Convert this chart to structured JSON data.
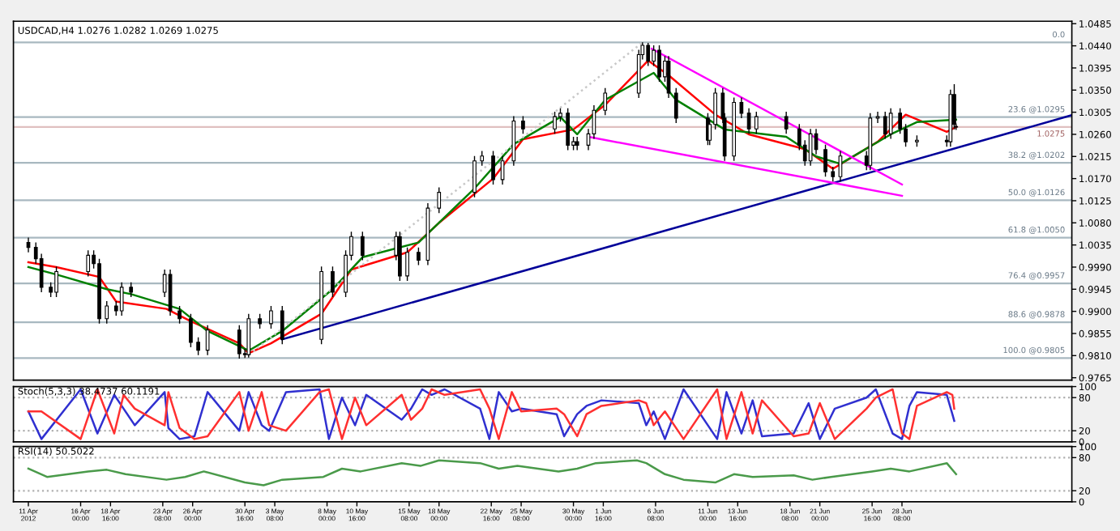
{
  "chart_data": [
    {
      "type": "candlestick",
      "title": "USDCAD,H4 1.0276 1.0282 1.0269 1.0275",
      "x": [
        "2012-04-11T08:00",
        "2012-04-12T00:00",
        "2012-04-12T12:00",
        "2012-04-13T08:00",
        "2012-04-13T20:00",
        "2012-04-16T16:00",
        "2012-04-17T04:00",
        "2012-04-17T16:00",
        "2012-04-18T08:00",
        "2012-04-19T04:00",
        "2012-04-19T16:00",
        "2012-04-20T12:00",
        "2012-04-23T12:00",
        "2012-04-24T00:00",
        "2012-04-24T20:00",
        "2012-04-25T20:00",
        "2012-04-26T12:00",
        "2012-04-27T08:00",
        "2012-04-30T04:00",
        "2012-04-30T16:00",
        "2012-05-01T00:00",
        "2012-05-02T00:00",
        "2012-05-03T00:00",
        "2012-05-04T00:00",
        "2012-05-07T12:00",
        "2012-05-08T12:00",
        "2012-05-09T16:00",
        "2012-05-10T04:00",
        "2012-05-11T04:00",
        "2012-05-14T04:00",
        "2012-05-14T12:00",
        "2012-05-15T04:00",
        "2012-05-16T04:00",
        "2012-05-17T00:00",
        "2012-05-18T00:00",
        "2012-05-21T04:00",
        "2012-05-21T20:00",
        "2012-05-22T20:00",
        "2012-05-23T16:00",
        "2012-05-24T16:00",
        "2012-05-25T12:00",
        "2012-05-28T08:00",
        "2012-05-28T20:00",
        "2012-05-29T12:00",
        "2012-05-30T00:00",
        "2012-05-30T08:00",
        "2012-05-31T08:00",
        "2012-05-31T20:00",
        "2012-06-01T20:00",
        "2012-06-04T20:00",
        "2012-06-05T04:00",
        "2012-06-05T16:00",
        "2012-06-06T04:00",
        "2012-06-06T16:00",
        "2012-06-07T04:00",
        "2012-06-07T12:00",
        "2012-06-08T04:00",
        "2012-06-11T00:00",
        "2012-06-11T04:00",
        "2012-06-11T16:00",
        "2012-06-12T08:00",
        "2012-06-12T12:00",
        "2012-06-13T08:00",
        "2012-06-14T00:00",
        "2012-06-14T16:00",
        "2012-06-15T08:00",
        "2012-06-18T00:00",
        "2012-06-19T04:00",
        "2012-06-19T16:00",
        "2012-06-20T04:00",
        "2012-06-20T16:00",
        "2012-06-21T12:00",
        "2012-06-22T04:00",
        "2012-06-22T20:00",
        "2012-06-25T04:00",
        "2012-06-25T12:00",
        "2012-06-26T04:00",
        "2012-06-26T20:00",
        "2012-06-27T08:00",
        "2012-06-28T04:00",
        "2012-06-28T16:00",
        "2012-06-29T16:00",
        "2012-07-02T08:00",
        "2012-07-02T16:00",
        "2012-07-03T00:00",
        "2012-07-03T04:00"
      ],
      "ohlc": [
        [
          1.004,
          1.005,
          1.002,
          1.003
        ],
        [
          1.003,
          1.004,
          0.9997,
          1.0007
        ],
        [
          1.0007,
          1.0017,
          0.9939,
          0.9949
        ],
        [
          0.9949,
          0.9959,
          0.9929,
          0.9939
        ],
        [
          0.9939,
          0.9991,
          0.9929,
          0.9981
        ],
        [
          0.9981,
          1.0024,
          0.9971,
          1.0014
        ],
        [
          1.0014,
          1.0024,
          0.9987,
          0.9997
        ],
        [
          0.9997,
          1.0007,
          0.9875,
          0.9885
        ],
        [
          0.9885,
          0.9921,
          0.9875,
          0.9911
        ],
        [
          0.9911,
          0.9921,
          0.9891,
          0.9901
        ],
        [
          0.9901,
          0.9959,
          0.9891,
          0.9949
        ],
        [
          0.9949,
          0.9959,
          0.9929,
          0.9939
        ],
        [
          0.9939,
          0.9985,
          0.9929,
          0.9975
        ],
        [
          0.9975,
          0.9985,
          0.9891,
          0.9901
        ],
        [
          0.9901,
          0.9911,
          0.9875,
          0.9885
        ],
        [
          0.9885,
          0.9895,
          0.9827,
          0.9837
        ],
        [
          0.9837,
          0.9847,
          0.9811,
          0.9821
        ],
        [
          0.9821,
          0.9872,
          0.9811,
          0.9862
        ],
        [
          0.9862,
          0.9872,
          0.9804,
          0.9814
        ],
        [
          0.9814,
          0.9824,
          0.9805,
          0.9812
        ],
        [
          0.9812,
          0.9895,
          0.9806,
          0.9885
        ],
        [
          0.9885,
          0.9895,
          0.9865,
          0.9875
        ],
        [
          0.9875,
          0.9911,
          0.9865,
          0.9901
        ],
        [
          0.9901,
          0.9911,
          0.9833,
          0.9843
        ],
        [
          0.9843,
          0.9991,
          0.9833,
          0.9981
        ],
        [
          0.9981,
          0.9991,
          0.9929,
          0.9939
        ],
        [
          0.9939,
          1.0024,
          0.9929,
          1.0014
        ],
        [
          1.0014,
          1.0062,
          1.0004,
          1.0052
        ],
        [
          1.0052,
          1.0062,
          1.0004,
          1.0014
        ],
        [
          1.0014,
          1.0062,
          1.0004,
          1.0052
        ],
        [
          1.0052,
          1.0062,
          0.9962,
          0.9972
        ],
        [
          0.9972,
          1.003,
          0.9962,
          1.002
        ],
        [
          1.002,
          1.003,
          0.9994,
          1.0004
        ],
        [
          1.0004,
          1.012,
          0.9994,
          1.011
        ],
        [
          1.011,
          1.0152,
          1.01,
          1.0142
        ],
        [
          1.0142,
          1.0216,
          1.0132,
          1.0206
        ],
        [
          1.0206,
          1.0226,
          1.0196,
          1.0216
        ],
        [
          1.0216,
          1.0226,
          1.0158,
          1.0168
        ],
        [
          1.0168,
          1.0216,
          1.0158,
          1.0206
        ],
        [
          1.0206,
          1.0297,
          1.0196,
          1.0287
        ],
        [
          1.0287,
          1.0297,
          1.0261,
          1.0271
        ],
        [
          1.0271,
          1.0306,
          1.0261,
          1.0296
        ],
        [
          1.0296,
          1.0313,
          1.0286,
          1.0303
        ],
        [
          1.0303,
          1.0313,
          1.0228,
          1.0238
        ],
        [
          1.0238,
          1.0255,
          1.0228,
          1.0245
        ],
        [
          1.0245,
          1.0255,
          1.0228,
          1.0238
        ],
        [
          1.0238,
          1.0271,
          1.0228,
          1.0261
        ],
        [
          1.0261,
          1.0319,
          1.0251,
          1.0309
        ],
        [
          1.0309,
          1.0354,
          1.0299,
          1.0344
        ],
        [
          1.0344,
          1.0432,
          1.0334,
          1.0422
        ],
        [
          1.0422,
          1.0447,
          1.0412,
          1.0441
        ],
        [
          1.0441,
          1.0446,
          1.0399,
          1.0409
        ],
        [
          1.0409,
          1.0441,
          1.0399,
          1.0431
        ],
        [
          1.0431,
          1.0441,
          1.0367,
          1.0377
        ],
        [
          1.0377,
          1.0419,
          1.0367,
          1.0409
        ],
        [
          1.0409,
          1.0419,
          1.0334,
          1.0344
        ],
        [
          1.0344,
          1.0354,
          1.0283,
          1.0293
        ],
        [
          1.0293,
          1.0303,
          1.0238,
          1.0248
        ],
        [
          1.0248,
          1.029,
          1.0238,
          1.028
        ],
        [
          1.028,
          1.0354,
          1.027,
          1.0344
        ],
        [
          1.0344,
          1.0354,
          1.0283,
          1.0293
        ],
        [
          1.0293,
          1.0303,
          1.0206,
          1.0216
        ],
        [
          1.0216,
          1.0335,
          1.0206,
          1.0325
        ],
        [
          1.0325,
          1.0335,
          1.0293,
          1.0303
        ],
        [
          1.0303,
          1.0313,
          1.0261,
          1.0271
        ],
        [
          1.0271,
          1.0306,
          1.0261,
          1.0296
        ],
        [
          1.0296,
          1.0306,
          1.0261,
          1.0271
        ],
        [
          1.0271,
          1.0281,
          1.0228,
          1.0238
        ],
        [
          1.0238,
          1.0248,
          1.0196,
          1.0206
        ],
        [
          1.0206,
          1.0271,
          1.0196,
          1.0261
        ],
        [
          1.0261,
          1.0271,
          1.0219,
          1.0229
        ],
        [
          1.0229,
          1.0239,
          1.0174,
          1.0184
        ],
        [
          1.0184,
          1.0194,
          1.0164,
          1.0174
        ],
        [
          1.0174,
          1.0226,
          1.0164,
          1.0216
        ],
        [
          1.0216,
          1.0226,
          1.0187,
          1.0197
        ],
        [
          1.0197,
          1.0303,
          1.0187,
          1.0293
        ],
        [
          1.0293,
          1.0306,
          1.0283,
          1.0296
        ],
        [
          1.0296,
          1.0306,
          1.0251,
          1.0261
        ],
        [
          1.0261,
          1.0313,
          1.0251,
          1.0303
        ],
        [
          1.0303,
          1.0313,
          1.0261,
          1.0271
        ],
        [
          1.0271,
          1.0281,
          1.0235,
          1.0245
        ],
        [
          1.0245,
          1.0258,
          1.0235,
          1.0248
        ],
        [
          1.0248,
          1.0258,
          1.0235,
          1.0245
        ],
        [
          1.0245,
          1.0351,
          1.0235,
          1.0341
        ],
        [
          1.0341,
          1.0362,
          1.027,
          1.028
        ],
        [
          1.0276,
          1.0282,
          1.0269,
          1.0275
        ]
      ],
      "series": [
        {
          "type": "line",
          "color": "#ff0000",
          "x": [
            "2012-04-11T08:00",
            "2012-04-13T20:00",
            "2012-04-17T16:00",
            "2012-04-19T04:00",
            "2012-04-23T16:00",
            "2012-04-25T20:00",
            "2012-04-30T04:00",
            "2012-05-01T00:00",
            "2012-05-03T00:00",
            "2012-05-07T12:00",
            "2012-05-10T04:00",
            "2012-05-15T04:00",
            "2012-05-18T00:00",
            "2012-05-22T20:00",
            "2012-05-25T12:00",
            "2012-05-30T00:00",
            "2012-06-01T20:00",
            "2012-06-05T16:00",
            "2012-06-07T12:00",
            "2012-06-11T16:00",
            "2012-06-14T16:00",
            "2012-06-19T16:00",
            "2012-06-22T04:00",
            "2012-06-26T04:00",
            "2012-06-28T16:00",
            "2012-07-02T08:00",
            "2012-07-03T04:00"
          ],
          "values": [
            1.0,
            0.999,
            0.997,
            0.992,
            0.9905,
            0.988,
            0.9835,
            0.9815,
            0.9835,
            0.9895,
            0.9985,
            1.002,
            1.008,
            1.017,
            1.025,
            1.027,
            1.032,
            1.041,
            1.038,
            1.03,
            1.026,
            1.023,
            1.019,
            1.0245,
            1.03,
            1.0265,
            1.0275
          ]
        },
        {
          "type": "line",
          "color": "#008000",
          "x": [
            "2012-04-11T08:00",
            "2012-04-13T20:00",
            "2012-04-18T08:00",
            "2012-04-20T12:00",
            "2012-04-24T20:00",
            "2012-04-27T08:00",
            "2012-05-01T00:00",
            "2012-05-04T00:00",
            "2012-05-08T12:00",
            "2012-05-11T04:00",
            "2012-05-16T04:00",
            "2012-05-21T04:00",
            "2012-05-24T16:00",
            "2012-05-28T20:00",
            "2012-05-30T08:00",
            "2012-06-01T20:00",
            "2012-06-06T04:00",
            "2012-06-08T04:00",
            "2012-06-12T12:00",
            "2012-06-18T00:00",
            "2012-06-20T16:00",
            "2012-06-22T20:00",
            "2012-06-27T08:00",
            "2012-06-29T16:00",
            "2012-07-03T04:00"
          ],
          "values": [
            0.999,
            0.9975,
            0.9945,
            0.9935,
            0.9905,
            0.986,
            0.982,
            0.986,
            0.9945,
            1.001,
            1.004,
            1.015,
            1.024,
            1.0295,
            1.026,
            1.033,
            1.0385,
            1.033,
            1.027,
            1.0255,
            1.0215,
            1.02,
            1.026,
            1.0285,
            1.029
          ]
        },
        {
          "type": "line",
          "color": "#000099",
          "x": [
            "2012-05-04T00:00",
            "2012-07-13T12:00"
          ],
          "values": [
            0.9843,
            1.0299
          ]
        },
        {
          "type": "line",
          "color": "#ff00ff",
          "x": [
            "2012-06-06T00:00",
            "2012-06-28T08:00"
          ],
          "values": [
            1.0434,
            1.0158
          ]
        },
        {
          "type": "line",
          "color": "#ff00ff",
          "x": [
            "2012-05-31T08:00",
            "2012-06-28T08:00"
          ],
          "values": [
            1.0255,
            1.0135
          ]
        },
        {
          "type": "line",
          "color": "#c8c8c8",
          "line_style": "dotted",
          "x": [
            "2012-04-30T16:00",
            "2012-06-05T04:00"
          ],
          "values": [
            0.9805,
            1.0447
          ]
        }
      ],
      "ref_lines": [
        {
          "axis": "y",
          "value": 1.0447,
          "color": "#a8b8c0"
        },
        {
          "axis": "y",
          "value": 1.0295,
          "color": "#a8b8c0"
        },
        {
          "axis": "y",
          "value": 1.0202,
          "color": "#a8b8c0"
        },
        {
          "axis": "y",
          "value": 1.0126,
          "color": "#a8b8c0"
        },
        {
          "axis": "y",
          "value": 1.005,
          "color": "#a8b8c0"
        },
        {
          "axis": "y",
          "value": 0.9957,
          "color": "#a8b8c0"
        },
        {
          "axis": "y",
          "value": 0.9878,
          "color": "#a8b8c0"
        },
        {
          "axis": "y",
          "value": 0.9805,
          "color": "#a8b8c0"
        },
        {
          "axis": "y",
          "value": 1.0275,
          "label": "1.0275",
          "color": "#e0c0c0"
        }
      ],
      "annotations": [
        "0.0",
        "23.6 @1.0295",
        "38.2 @1.0202",
        "50.0 @1.0126",
        "61.8 @1.0050",
        "76.4 @0.9957",
        "88.6 @0.9878",
        "100.0 @0.9805"
      ],
      "xlim": [
        "2012-04-10T00:00",
        "2012-07-13T12:00"
      ],
      "ylim": [
        0.976,
        1.049
      ],
      "yticks": [
        {
          "value": 1.0485,
          "label": "1.0485"
        },
        {
          "value": 1.044,
          "label": "1.0440"
        },
        {
          "value": 1.0395,
          "label": "1.0395"
        },
        {
          "value": 1.035,
          "label": "1.0350"
        },
        {
          "value": 1.0305,
          "label": "1.0305"
        },
        {
          "value": 1.026,
          "label": "1.0260"
        },
        {
          "value": 1.0215,
          "label": "1.0215"
        },
        {
          "value": 1.017,
          "label": "1.0170"
        },
        {
          "value": 1.0125,
          "label": "1.0125"
        },
        {
          "value": 1.008,
          "label": "1.0080"
        },
        {
          "value": 1.0035,
          "label": "1.0035"
        },
        {
          "value": 0.999,
          "label": "0.9990"
        },
        {
          "value": 0.9945,
          "label": "0.9945"
        },
        {
          "value": 0.99,
          "label": "0.9900"
        },
        {
          "value": 0.9855,
          "label": "0.9855"
        },
        {
          "value": 0.981,
          "label": "0.9810"
        },
        {
          "value": 0.9765,
          "label": "0.9765"
        }
      ],
      "tick_labels": "y"
    },
    {
      "type": "line",
      "title": "Stoch(5,3,3) 38.4737 60.1191",
      "series": [
        {
          "color": "#3030d0",
          "x": [
            "2012-04-11T08:00",
            "2012-04-12T12:00",
            "2012-04-16T00:00",
            "2012-04-17T12:00",
            "2012-04-19T00:00",
            "2012-04-19T20:00",
            "2012-04-20T20:00",
            "2012-04-23T12:00",
            "2012-04-23T20:00",
            "2012-04-24T20:00",
            "2012-04-26T04:00",
            "2012-04-27T08:00",
            "2012-04-30T04:00",
            "2012-05-01T00:00",
            "2012-05-02T04:00",
            "2012-05-02T20:00",
            "2012-05-04T08:00",
            "2012-05-07T08:00",
            "2012-05-08T04:00",
            "2012-05-09T08:00",
            "2012-05-10T12:00",
            "2012-05-11T12:00",
            "2012-05-14T16:00",
            "2012-05-15T12:00",
            "2012-05-16T12:00",
            "2012-05-17T08:00",
            "2012-05-18T12:00",
            "2012-05-21T16:00",
            "2012-05-22T12:00",
            "2012-05-23T08:00",
            "2012-05-24T12:00",
            "2012-05-25T08:00",
            "2012-05-28T12:00",
            "2012-05-29T04:00",
            "2012-05-30T08:00",
            "2012-05-31T04:00",
            "2012-06-01T12:00",
            "2012-06-04T20:00",
            "2012-06-05T12:00",
            "2012-06-06T04:00",
            "2012-06-07T04:00",
            "2012-06-08T20:00",
            "2012-06-11T20:00",
            "2012-06-12T16:00",
            "2012-06-14T00:00",
            "2012-06-15T00:00",
            "2012-06-15T20:00",
            "2012-06-18T16:00",
            "2012-06-20T00:00",
            "2012-06-21T00:00",
            "2012-06-22T08:00",
            "2012-06-25T04:00",
            "2012-06-26T00:00",
            "2012-06-27T12:00",
            "2012-06-28T08:00",
            "2012-06-29T00:00",
            "2012-06-29T16:00",
            "2012-07-02T08:00",
            "2012-07-02T20:00",
            "2012-07-03T00:00"
          ],
          "values": [
            55,
            5,
            95,
            15,
            85,
            60,
            30,
            90,
            25,
            5,
            10,
            90,
            20,
            90,
            30,
            20,
            90,
            95,
            5,
            80,
            30,
            85,
            40,
            60,
            95,
            85,
            95,
            60,
            5,
            90,
            55,
            60,
            50,
            10,
            50,
            65,
            75,
            70,
            30,
            55,
            5,
            95,
            5,
            90,
            15,
            75,
            10,
            15,
            70,
            5,
            60,
            80,
            95,
            15,
            5,
            65,
            90,
            85,
            50,
            38
          ]
        },
        {
          "color": "#ff3030",
          "x": [
            "2012-04-11T08:00",
            "2012-04-12T12:00",
            "2012-04-16T00:00",
            "2012-04-17T12:00",
            "2012-04-19T00:00",
            "2012-04-19T20:00",
            "2012-04-20T20:00",
            "2012-04-23T12:00",
            "2012-04-23T20:00",
            "2012-04-24T20:00",
            "2012-04-26T04:00",
            "2012-04-27T08:00",
            "2012-04-30T04:00",
            "2012-05-01T00:00",
            "2012-05-02T04:00",
            "2012-05-02T20:00",
            "2012-05-04T08:00",
            "2012-05-07T08:00",
            "2012-05-08T04:00",
            "2012-05-09T08:00",
            "2012-05-10T12:00",
            "2012-05-11T12:00",
            "2012-05-14T16:00",
            "2012-05-15T12:00",
            "2012-05-16T12:00",
            "2012-05-17T08:00",
            "2012-05-18T12:00",
            "2012-05-21T16:00",
            "2012-05-22T12:00",
            "2012-05-23T08:00",
            "2012-05-24T12:00",
            "2012-05-25T08:00",
            "2012-05-28T12:00",
            "2012-05-29T04:00",
            "2012-05-30T08:00",
            "2012-05-31T04:00",
            "2012-06-01T12:00",
            "2012-06-04T20:00",
            "2012-06-05T12:00",
            "2012-06-06T04:00",
            "2012-06-07T04:00",
            "2012-06-08T20:00",
            "2012-06-11T20:00",
            "2012-06-12T16:00",
            "2012-06-14T00:00",
            "2012-06-15T00:00",
            "2012-06-15T20:00",
            "2012-06-18T16:00",
            "2012-06-20T00:00",
            "2012-06-21T00:00",
            "2012-06-22T08:00",
            "2012-06-25T04:00",
            "2012-06-26T00:00",
            "2012-06-27T12:00",
            "2012-06-28T08:00",
            "2012-06-29T00:00",
            "2012-06-29T16:00",
            "2012-07-02T08:00",
            "2012-07-02T20:00",
            "2012-07-03T00:00"
          ],
          "values": [
            55,
            55,
            5,
            95,
            15,
            85,
            60,
            30,
            90,
            25,
            5,
            10,
            90,
            20,
            90,
            30,
            20,
            90,
            95,
            5,
            80,
            30,
            85,
            40,
            60,
            95,
            85,
            95,
            60,
            5,
            90,
            55,
            60,
            50,
            10,
            50,
            65,
            75,
            70,
            30,
            55,
            5,
            95,
            5,
            90,
            15,
            75,
            10,
            15,
            70,
            5,
            60,
            80,
            95,
            15,
            5,
            65,
            90,
            85,
            60
          ]
        }
      ],
      "ref_lines": [
        {
          "axis": "y",
          "value": 20,
          "line_style": "dotted",
          "color": "#b0b0b0"
        },
        {
          "axis": "y",
          "value": 80,
          "line_style": "dotted",
          "color": "#b0b0b0"
        }
      ],
      "xlim": [
        "2012-04-10T00:00",
        "2012-07-13T12:00"
      ],
      "ylim": [
        0,
        100
      ],
      "yticks": [
        0,
        20,
        80,
        100
      ],
      "tick_labels": "y"
    },
    {
      "type": "line",
      "title": "RSI(14) 50.5022",
      "series": [
        {
          "color": "#4a9a4a",
          "x": [
            "2012-04-11T08:00",
            "2012-04-13T00:00",
            "2012-04-16T16:00",
            "2012-04-18T08:00",
            "2012-04-20T00:00",
            "2012-04-23T16:00",
            "2012-04-25T08:00",
            "2012-04-27T00:00",
            "2012-04-30T16:00",
            "2012-05-02T08:00",
            "2012-05-04T00:00",
            "2012-05-07T16:00",
            "2012-05-09T08:00",
            "2012-05-11T00:00",
            "2012-05-14T16:00",
            "2012-05-16T08:00",
            "2012-05-18T00:00",
            "2012-05-21T16:00",
            "2012-05-23T08:00",
            "2012-05-25T00:00",
            "2012-05-28T16:00",
            "2012-05-30T08:00",
            "2012-06-01T00:00",
            "2012-06-04T16:00",
            "2012-06-05T12:00",
            "2012-06-07T04:00",
            "2012-06-08T20:00",
            "2012-06-11T16:00",
            "2012-06-13T08:00",
            "2012-06-15T00:00",
            "2012-06-18T16:00",
            "2012-06-20T08:00",
            "2012-06-22T00:00",
            "2012-06-25T16:00",
            "2012-06-27T08:00",
            "2012-06-29T00:00",
            "2012-07-02T08:00",
            "2012-07-03T04:00"
          ],
          "values": [
            60,
            45,
            55,
            58,
            50,
            40,
            45,
            55,
            35,
            30,
            40,
            45,
            60,
            55,
            70,
            65,
            75,
            70,
            60,
            65,
            55,
            60,
            70,
            75,
            70,
            50,
            40,
            35,
            50,
            45,
            48,
            40,
            45,
            55,
            60,
            55,
            70,
            50
          ]
        }
      ],
      "ref_lines": [
        {
          "axis": "y",
          "value": 20,
          "line_style": "dotted",
          "color": "#b0b0b0"
        },
        {
          "axis": "y",
          "value": 80,
          "line_style": "dotted",
          "color": "#b0b0b0"
        }
      ],
      "xlim": [
        "2012-04-10T00:00",
        "2012-07-13T12:00"
      ],
      "ylim": [
        0,
        100
      ],
      "yticks": [
        0,
        20,
        80,
        100
      ],
      "xticks": [
        {
          "value": "2012-04-11T08:00",
          "label": "11 Apr 2012"
        },
        {
          "value": "2012-04-16T00:00",
          "label": "16 Apr 00:00"
        },
        {
          "value": "2012-04-18T16:00",
          "label": "18 Apr 16:00"
        },
        {
          "value": "2012-04-23T08:00",
          "label": "23 Apr 08:00"
        },
        {
          "value": "2012-04-26T00:00",
          "label": "26 Apr 00:00"
        },
        {
          "value": "2012-04-30T16:00",
          "label": "30 Apr 16:00"
        },
        {
          "value": "2012-05-03T08:00",
          "label": "3 May 08:00"
        },
        {
          "value": "2012-05-08T00:00",
          "label": "8 May 00:00"
        },
        {
          "value": "2012-05-10T16:00",
          "label": "10 May 16:00"
        },
        {
          "value": "2012-05-15T08:00",
          "label": "15 May 08:00"
        },
        {
          "value": "2012-05-18T00:00",
          "label": "18 May 00:00"
        },
        {
          "value": "2012-05-22T16:00",
          "label": "22 May 16:00"
        },
        {
          "value": "2012-05-25T08:00",
          "label": "25 May 08:00"
        },
        {
          "value": "2012-05-30T00:00",
          "label": "30 May 00:00"
        },
        {
          "value": "2012-06-01T16:00",
          "label": "1 Jun 16:00"
        },
        {
          "value": "2012-06-06T08:00",
          "label": "6 Jun 08:00"
        },
        {
          "value": "2012-06-11T00:00",
          "label": "11 Jun 00:00"
        },
        {
          "value": "2012-06-13T16:00",
          "label": "13 Jun 16:00"
        },
        {
          "value": "2012-06-18T08:00",
          "label": "18 Jun 08:00"
        },
        {
          "value": "2012-06-21T00:00",
          "label": "21 Jun 00:00"
        },
        {
          "value": "2012-06-25T16:00",
          "label": "25 Jun 16:00"
        },
        {
          "value": "2012-06-28T08:00",
          "label": "28 Jun 08:00"
        }
      ]
    }
  ]
}
